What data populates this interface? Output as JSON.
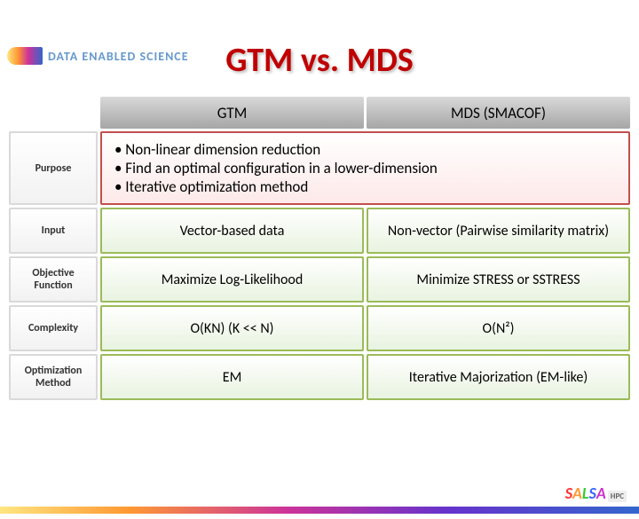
{
  "branding": {
    "top_text": "DATA ENABLED SCIENCE",
    "footer_logo": {
      "l1": "S",
      "l2": "A",
      "l3": "L",
      "l4": "S",
      "l5": "A",
      "hpc": "HPC"
    }
  },
  "title": "GTM vs. MDS",
  "headers": {
    "col1": "GTM",
    "col2": "MDS (SMACOF)"
  },
  "rows": {
    "purpose": {
      "label": "Purpose",
      "line1": "• Non-linear dimension reduction",
      "line2": "• Find an optimal configuration in a lower-dimension",
      "line3": "• Iterative optimization method"
    },
    "input": {
      "label": "Input",
      "gtm": "Vector-based data",
      "mds": "Non-vector (Pairwise similarity matrix)"
    },
    "objective": {
      "label": "Objective Function",
      "gtm": "Maximize Log-Likelihood",
      "mds": "Minimize STRESS or SSTRESS"
    },
    "complexity": {
      "label": "Complexity",
      "gtm": "O(KN) (K << N)",
      "mds": "O(N²)"
    },
    "optimization": {
      "label": "Optimization Method",
      "gtm": "EM",
      "mds": "Iterative Majorization (EM-like)"
    }
  },
  "colors": {
    "title_color": "#c00000",
    "header_bg_top": "#d9d9d9",
    "header_bg_bottom": "#a6a6a6",
    "label_border": "#d9d9d9",
    "purpose_border": "#c0504d",
    "purpose_bg_bottom": "#fde9e9",
    "green_border": "#9bbb59",
    "green_bg_bottom": "#e8f3e0"
  },
  "fonts": {
    "title_size": 38,
    "header_size": 17,
    "label_size": 12,
    "cell_size": 16,
    "purpose_size": 17
  }
}
